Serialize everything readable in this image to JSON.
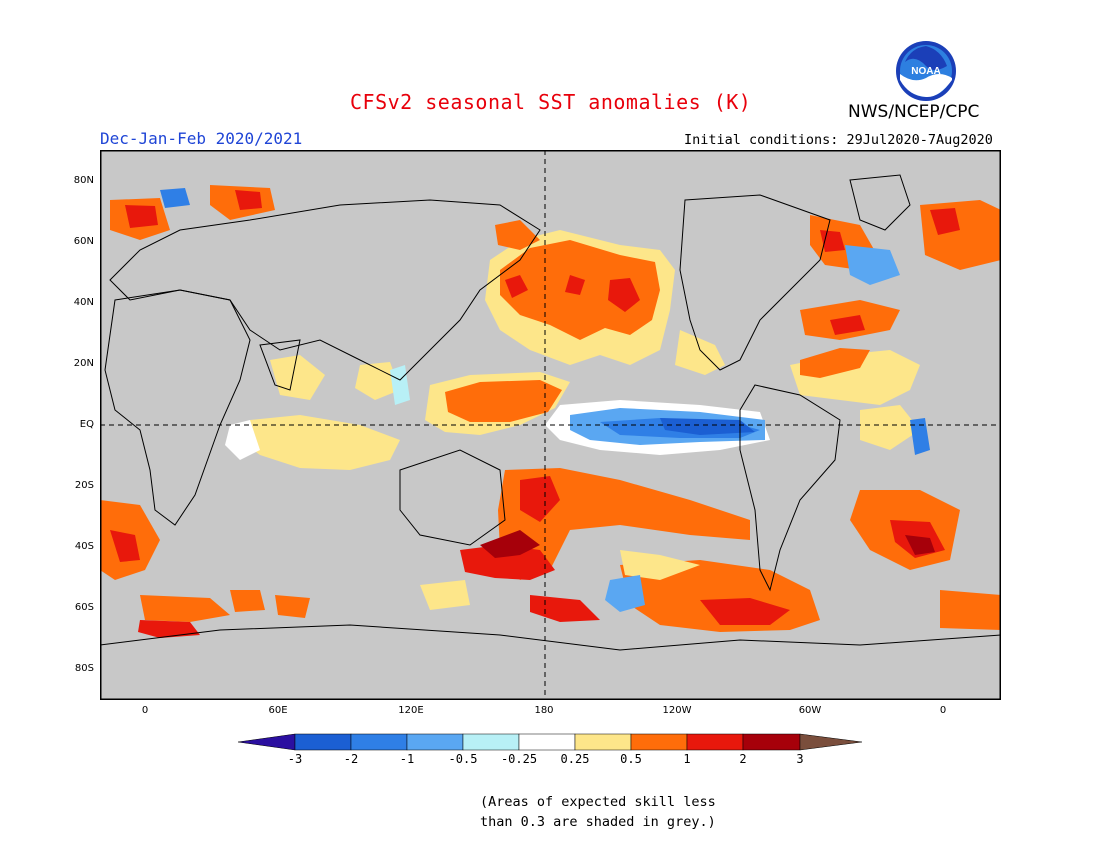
{
  "header": {
    "title": "CFSv2 seasonal SST anomalies (K)",
    "season": "Dec-Jan-Feb 2020/2021",
    "initial_conditions": "Initial conditions: 29Jul2020-7Aug2020",
    "agency": "NWS/NCEP/CPC",
    "logo_text": "NOAA"
  },
  "map": {
    "lat_labels": [
      "80N",
      "60N",
      "40N",
      "20N",
      "EQ",
      "20S",
      "40S",
      "60S",
      "80S"
    ],
    "lon_labels": [
      "0",
      "60E",
      "120E",
      "180",
      "120W",
      "60W",
      "0"
    ]
  },
  "colorbar": {
    "labels": [
      "-3",
      "-2",
      "-1",
      "-0.5",
      "-0.25",
      "0.25",
      "0.5",
      "1",
      "2",
      "3"
    ],
    "colors": [
      "#2b0fa0",
      "#1b5fd3",
      "#2f7fe6",
      "#5aa7f2",
      "#b8f0f6",
      "#ffffff",
      "#fde68a",
      "#ff6d0a",
      "#e8180c",
      "#a6000a",
      "#7a4e3c"
    ]
  },
  "colors": {
    "ocean_grey": "#c8c8c8",
    "land_grey": "#c8c8c8",
    "title_red": "#e8000b",
    "season_blue": "#1f45d6"
  },
  "note": {
    "line1": "(Areas of expected skill less",
    "line2": "than 0.3 are shaded in grey.)"
  }
}
